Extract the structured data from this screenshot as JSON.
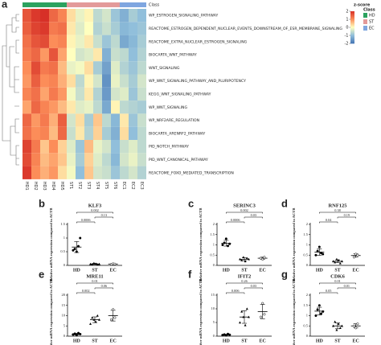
{
  "chart_data": [
    {
      "type": "heatmap",
      "panel_label": "a",
      "columns": [
        "HD1",
        "HD2",
        "HD3",
        "HD4",
        "HD5",
        "ST1",
        "ST2",
        "ST3",
        "ST4",
        "ST5",
        "ST6",
        "EC1",
        "EC2",
        "EC3"
      ],
      "rows": [
        "WP_ESTROGEN_SIGNALING_PATHWAY",
        "REACTOME_ESTROGEN_DEPENDENT_NUCLEAR_EVENTS_DOWNSTREAM_OF_ESR_MEMBRANE_SIGNALING",
        "REACTOME_EXTRA_NUCLEAR_ESTROGEN_SIGNALING",
        "BIOCARTA_WNT_PATHWAY",
        "WNT_SIGNALING",
        "WP_WNT_SIGNALING_PATHWAY_AND_PLURIPOTENCY",
        "KEGG_WNT_SIGNALING_PATHWAY",
        "WP_WNT_SIGNALING",
        "WP_NRF2ARE_REGULATION",
        "BIOCARTA_ARENRF2_PATHWAY",
        "PID_NOTCH_PATHWAY",
        "PID_WNT_CANONICAL_PATHWAY",
        "REACTOME_FOXO_MEDIATED_TRANSCRIPTION"
      ],
      "values": [
        [
          1.6,
          1.9,
          2.0,
          1.4,
          1.1,
          0.3,
          -0.2,
          0.1,
          -0.6,
          -0.4,
          -0.9,
          -1.2,
          -0.8,
          -1.0
        ],
        [
          1.5,
          1.8,
          1.9,
          1.2,
          1.3,
          0.2,
          -0.3,
          0.0,
          -0.7,
          -0.5,
          -0.8,
          -1.1,
          -1.0,
          -0.9
        ],
        [
          1.3,
          1.6,
          1.7,
          1.0,
          1.1,
          0.1,
          -0.2,
          0.2,
          -0.5,
          -0.9,
          -0.6,
          -1.3,
          -1.1,
          -0.8
        ],
        [
          1.2,
          1.4,
          0.9,
          1.6,
          0.8,
          0.0,
          -0.4,
          -0.3,
          0.2,
          -1.2,
          -0.5,
          -0.6,
          -1.0,
          -0.7
        ],
        [
          1.0,
          1.7,
          1.2,
          1.3,
          0.6,
          -0.2,
          -0.1,
          0.3,
          -0.8,
          -1.4,
          -0.3,
          -0.7,
          -0.9,
          -0.6
        ],
        [
          0.9,
          1.5,
          1.0,
          1.1,
          0.7,
          0.3,
          -0.6,
          0.1,
          -0.4,
          -1.6,
          -0.2,
          -0.5,
          -0.8,
          -0.4
        ],
        [
          1.1,
          1.3,
          0.8,
          1.2,
          0.9,
          -0.1,
          -0.5,
          0.2,
          -0.7,
          -1.5,
          -0.4,
          -0.3,
          -0.9,
          -0.5
        ],
        [
          0.8,
          1.4,
          1.1,
          0.9,
          0.6,
          0.2,
          -0.3,
          -0.2,
          -0.6,
          -1.3,
          0.1,
          -0.6,
          -0.7,
          -0.8
        ],
        [
          1.4,
          0.9,
          1.2,
          0.7,
          1.5,
          -0.4,
          0.3,
          -0.8,
          0.5,
          -0.6,
          -1.1,
          0.2,
          -0.9,
          -0.5
        ],
        [
          1.3,
          1.0,
          1.1,
          0.6,
          1.4,
          -0.5,
          0.2,
          -0.7,
          0.4,
          -0.8,
          -1.2,
          0.3,
          -1.0,
          -0.6
        ],
        [
          1.8,
          1.2,
          0.5,
          1.0,
          0.4,
          -0.3,
          -0.9,
          0.6,
          -0.2,
          -0.4,
          -1.0,
          -0.5,
          -0.3,
          -0.6
        ],
        [
          1.7,
          1.1,
          0.6,
          0.8,
          0.5,
          -0.2,
          -0.8,
          0.4,
          -0.3,
          -0.6,
          -1.1,
          -0.4,
          -0.2,
          -0.5
        ],
        [
          1.9,
          1.0,
          0.7,
          0.9,
          0.3,
          -0.1,
          -1.0,
          0.5,
          -0.4,
          -0.5,
          -0.9,
          -0.6,
          -0.4,
          -0.7
        ]
      ],
      "class_title": "Class",
      "classes": [
        {
          "name": "HD",
          "color": "#2ca25f"
        },
        {
          "name": "ST",
          "color": "#e39a9a"
        },
        {
          "name": "EC",
          "color": "#7fa6e0"
        }
      ],
      "colorbar": {
        "title": "z-score",
        "lim": [
          -2,
          2
        ],
        "ticks": [
          2,
          1,
          0,
          -1,
          -2
        ],
        "colors": [
          "#4575b4",
          "#91bfdb",
          "#ffffbf",
          "#fc8d59",
          "#d73027"
        ]
      }
    },
    {
      "type": "dotplot",
      "panel_label": "b",
      "title": "KLF3",
      "ylabel": "Relative mRNA expression compared to ACTB",
      "categories": [
        "HD",
        "ST",
        "EC"
      ],
      "ylim": [
        0,
        1.5
      ],
      "yticks": [
        0,
        0.5,
        1,
        1.5
      ],
      "points": [
        [
          0.55,
          0.6,
          0.5,
          0.7,
          1.0
        ],
        [
          0.05,
          0.04,
          0.08,
          0.06,
          0.03,
          0.05
        ],
        [
          0.04,
          0.06,
          0.05
        ]
      ],
      "means": [
        0.67,
        0.05,
        0.05
      ],
      "errors": [
        0.2,
        0.02,
        0.01
      ],
      "pvalues": [
        "0.002",
        "0.13",
        "0.0006"
      ]
    },
    {
      "type": "dotplot",
      "panel_label": "c",
      "title": "SERINC3",
      "ylabel": "Relative mRNA expression compared to ACTB",
      "categories": [
        "HD",
        "ST",
        "EC"
      ],
      "ylim": [
        0,
        2
      ],
      "yticks": [
        0,
        0.5,
        1,
        1.5,
        2
      ],
      "points": [
        [
          1.0,
          1.1,
          1.3,
          0.95,
          1.05
        ],
        [
          0.3,
          0.25,
          0.4,
          0.2,
          0.35,
          0.3
        ],
        [
          0.35,
          0.3,
          0.4
        ]
      ],
      "means": [
        1.08,
        0.3,
        0.35
      ],
      "errors": [
        0.14,
        0.07,
        0.05
      ],
      "pvalues": [
        "0.002",
        "0.03",
        "0.0006"
      ]
    },
    {
      "type": "dotplot",
      "panel_label": "d",
      "title": "RNF125",
      "ylabel": "Relative mRNA expression compared to ACTB",
      "categories": [
        "HD",
        "ST",
        "EC"
      ],
      "ylim": [
        0,
        2
      ],
      "yticks": [
        0,
        0.5,
        1,
        1.5,
        2
      ],
      "points": [
        [
          0.5,
          0.7,
          0.9,
          0.6,
          0.55
        ],
        [
          0.2,
          0.15,
          0.3,
          0.25,
          0.1,
          0.2
        ],
        [
          0.4,
          0.55,
          0.5
        ]
      ],
      "means": [
        0.65,
        0.2,
        0.48
      ],
      "errors": [
        0.16,
        0.07,
        0.08
      ],
      "pvalues": [
        "0.38",
        "0.19",
        "0.04"
      ]
    },
    {
      "type": "dotplot",
      "panel_label": "e",
      "title": "MRE11",
      "ylabel": "Relative mRNA expression compared to ACTB",
      "categories": [
        "HD",
        "ST",
        "EC"
      ],
      "ylim": [
        0,
        20
      ],
      "yticks": [
        0,
        5,
        10,
        15,
        20
      ],
      "points": [
        [
          0.8,
          1.2,
          0.5,
          1.5,
          1.0
        ],
        [
          6,
          9,
          8,
          7,
          10,
          8
        ],
        [
          8,
          13,
          9
        ]
      ],
      "means": [
        1,
        8,
        10
      ],
      "errors": [
        0.4,
        1.4,
        2.6
      ],
      "pvalues": [
        "0.01",
        "0.06",
        "0.002"
      ]
    },
    {
      "type": "dotplot",
      "panel_label": "f",
      "title": "IFIT2",
      "ylabel": "Relative mRNA expression compared to ACTB",
      "categories": [
        "HD",
        "ST",
        "EC"
      ],
      "ylim": [
        0,
        15
      ],
      "yticks": [
        0,
        5,
        10,
        15
      ],
      "points": [
        [
          0.4,
          0.6,
          0.3,
          0.8,
          0.5
        ],
        [
          5,
          9,
          7,
          4,
          10,
          7
        ],
        [
          7,
          12,
          8
        ]
      ],
      "means": [
        0.5,
        7,
        9
      ],
      "errors": [
        0.2,
        2.3,
        2.6
      ],
      "pvalues": [
        "0.26",
        "0.03",
        "0.006"
      ]
    },
    {
      "type": "dotplot",
      "panel_label": "g",
      "title": "CDK6",
      "ylabel": "Relative mRNA expression compared to ACTB",
      "categories": [
        "HD",
        "ST",
        "EC"
      ],
      "ylim": [
        0,
        2
      ],
      "yticks": [
        0,
        0.5,
        1,
        1.5,
        2
      ],
      "points": [
        [
          1.0,
          1.3,
          1.5,
          1.1,
          1.2
        ],
        [
          0.5,
          0.7,
          0.3,
          0.6,
          0.4,
          0.5
        ],
        [
          0.5,
          0.4,
          0.6
        ]
      ],
      "means": [
        1.22,
        0.5,
        0.5
      ],
      "errors": [
        0.19,
        0.14,
        0.1
      ],
      "pvalues": [
        "0.01",
        "0.01",
        "0.05"
      ]
    }
  ]
}
